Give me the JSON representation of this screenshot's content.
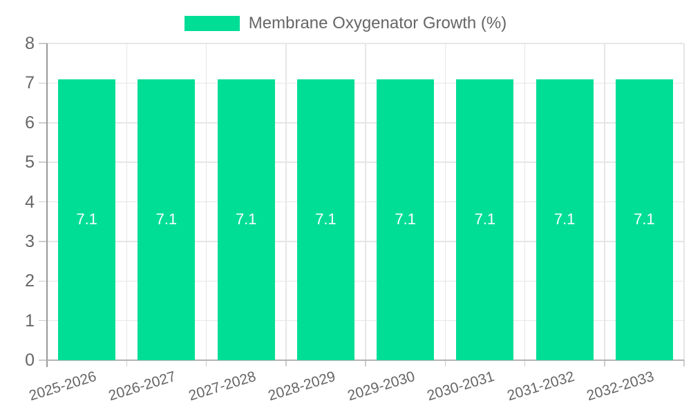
{
  "chart_data": {
    "type": "bar",
    "title": "",
    "categories": [
      "2025-2026",
      "2026-2027",
      "2027-2028",
      "2028-2029",
      "2029-2030",
      "2030-2031",
      "2031-2032",
      "2032-2033"
    ],
    "series": [
      {
        "name": "Membrane Oxygenator Growth (%)",
        "values": [
          7.1,
          7.1,
          7.1,
          7.1,
          7.1,
          7.1,
          7.1,
          7.1
        ]
      }
    ],
    "xlabel": "",
    "ylabel": "",
    "ylim": [
      0,
      8
    ],
    "y_ticks": [
      0,
      1,
      2,
      3,
      4,
      5,
      6,
      7,
      8
    ],
    "grid": true,
    "legend_position": "top",
    "x_label_rotation_deg": -17,
    "colors": {
      "bar": "#00de96",
      "value_label": "#ffffff",
      "axis_text": "#666666",
      "grid_line": "#e6e6e6",
      "axis_line_y": "#999999",
      "axis_line_x": "#b3b3b3",
      "tick_mark": "#cccccc",
      "background": "#ffffff"
    }
  }
}
